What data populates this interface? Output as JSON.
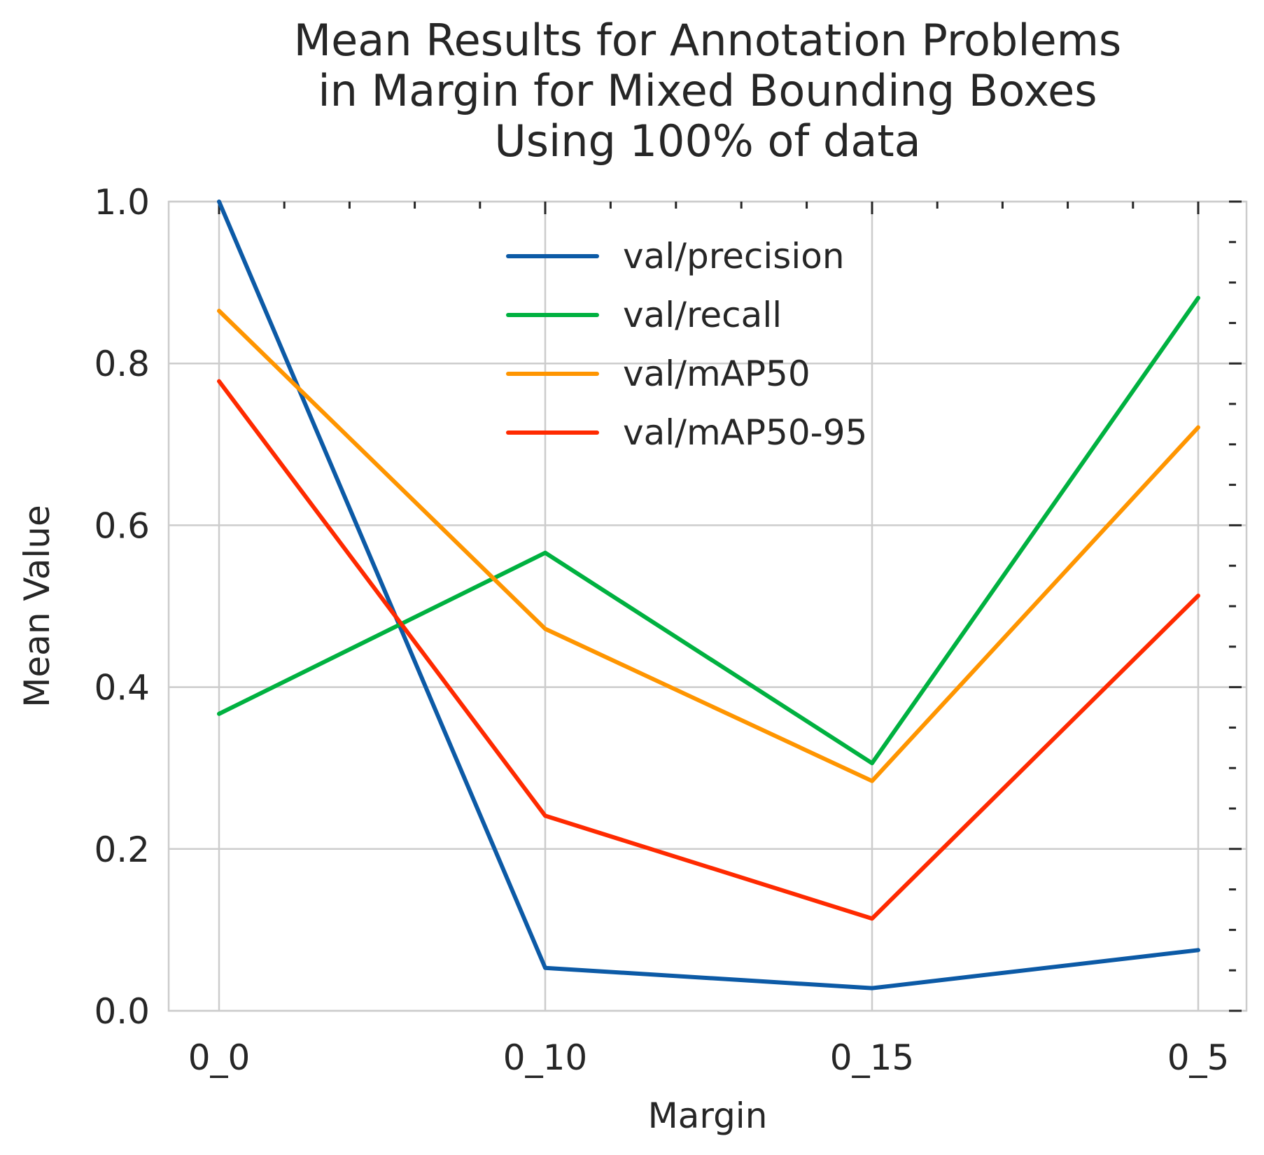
{
  "chart_data": {
    "type": "line",
    "title": "Mean Results for Annotation Problems\nin Margin for Mixed Bounding Boxes\nUsing 100% of data",
    "xlabel": "Margin",
    "ylabel": "Mean Value",
    "categories": [
      "0_0",
      "0_10",
      "0_15",
      "0_5"
    ],
    "ylim": [
      0,
      1
    ],
    "yticks": [
      0.0,
      0.2,
      0.4,
      0.6,
      0.8,
      1.0
    ],
    "ytick_labels": [
      "0.0",
      "0.2",
      "0.4",
      "0.6",
      "0.8",
      "1.0"
    ],
    "grid": true,
    "legend_position": "top-center",
    "series": [
      {
        "name": "val/precision",
        "color": "#0c5aa6",
        "values": [
          1.0,
          0.053,
          0.028,
          0.075
        ]
      },
      {
        "name": "val/recall",
        "color": "#00b140",
        "values": [
          0.367,
          0.566,
          0.306,
          0.881
        ]
      },
      {
        "name": "val/mAP50",
        "color": "#ff9500",
        "values": [
          0.865,
          0.472,
          0.284,
          0.721
        ]
      },
      {
        "name": "val/mAP50-95",
        "color": "#ff2a00",
        "values": [
          0.778,
          0.241,
          0.114,
          0.513
        ]
      }
    ]
  }
}
